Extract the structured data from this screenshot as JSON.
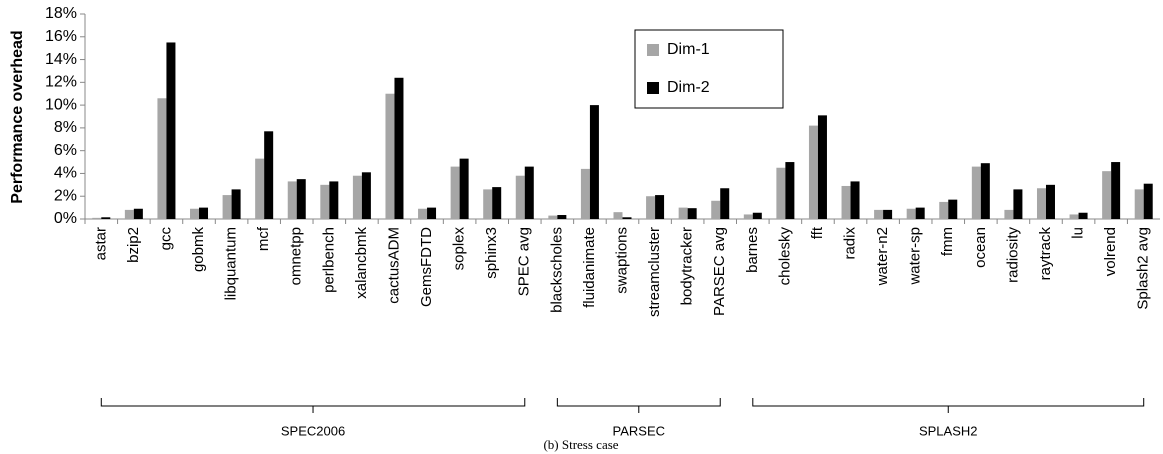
{
  "chart_data": {
    "type": "bar",
    "y_label": "Performance overhead",
    "caption": "(b) Stress case",
    "categories": [
      "astar",
      "bzip2",
      "gcc",
      "gobmk",
      "libquantum",
      "mcf",
      "omnetpp",
      "perlbench",
      "xalancbmk",
      "cactusADM",
      "GemsFDTD",
      "soplex",
      "sphinx3",
      "SPEC avg",
      "blackscholes",
      "fluidanimate",
      "swaptions",
      "streamcluster",
      "bodytracker",
      "PARSEC avg",
      "barnes",
      "cholesky",
      "fft",
      "radix",
      "water-n2",
      "water-sp",
      "fmm",
      "ocean",
      "radiosity",
      "raytrack",
      "lu",
      "volrend",
      "Splash2 avg"
    ],
    "groups": [
      "SPEC2006",
      "PARSEC",
      "SPLASH2"
    ],
    "series": [
      {
        "name": "Dim-1",
        "color": "#a6a6a6",
        "values": [
          0.1,
          0.8,
          10.6,
          0.9,
          2.1,
          5.3,
          3.3,
          3.0,
          3.8,
          11.0,
          0.9,
          4.6,
          2.6,
          3.8,
          0.3,
          4.4,
          0.6,
          2.0,
          1.0,
          1.6,
          0.4,
          4.5,
          8.2,
          2.9,
          0.8,
          0.9,
          1.5,
          4.6,
          0.8,
          2.7,
          0.4,
          4.2,
          2.6
        ]
      },
      {
        "name": "Dim-2",
        "color": "#000000",
        "values": [
          0.15,
          0.9,
          15.5,
          1.0,
          2.6,
          7.7,
          3.5,
          3.3,
          4.1,
          12.4,
          1.0,
          5.3,
          2.8,
          4.6,
          0.35,
          10.0,
          0.15,
          2.1,
          0.95,
          2.7,
          0.55,
          5.0,
          9.1,
          3.3,
          0.8,
          1.0,
          1.7,
          4.9,
          2.6,
          3.0,
          0.55,
          5.0,
          3.1
        ]
      }
    ],
    "ylim": [
      0,
      18
    ],
    "yticks": [
      {
        "value": 0,
        "label": "0%"
      },
      {
        "value": 2,
        "label": "2%"
      },
      {
        "value": 4,
        "label": "4%"
      },
      {
        "value": 6,
        "label": "6%"
      },
      {
        "value": 8,
        "label": "8%"
      },
      {
        "value": 10,
        "label": "10%"
      },
      {
        "value": 12,
        "label": "12%"
      },
      {
        "value": 14,
        "label": "14%"
      },
      {
        "value": 16,
        "label": "16%"
      },
      {
        "value": 18,
        "label": "18%"
      }
    ],
    "grid": false,
    "legend": "upper center"
  }
}
